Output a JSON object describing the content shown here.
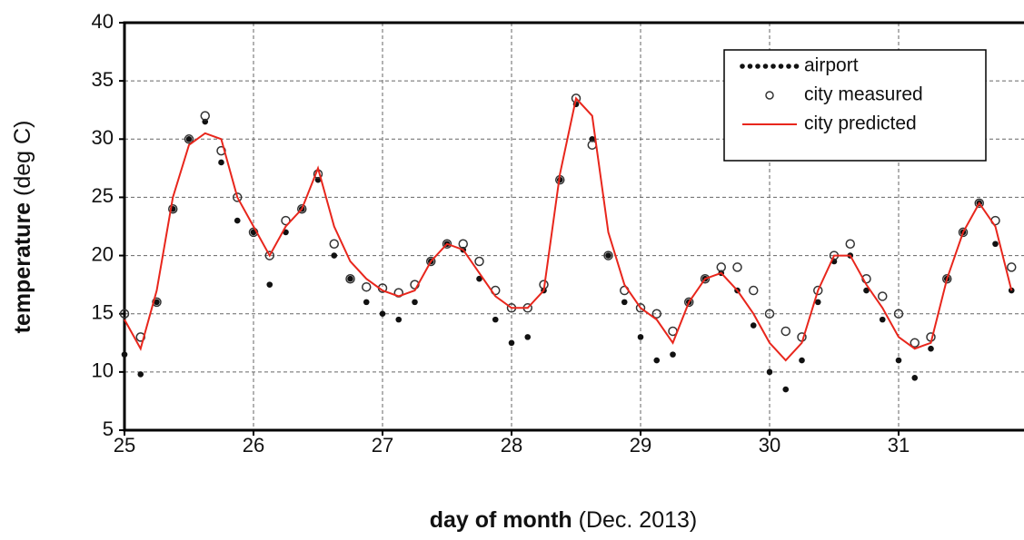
{
  "chart_data": {
    "type": "line",
    "x_label": "day of month",
    "x_label_note": "(Dec. 2013)",
    "y_label": "temperature",
    "y_label_note": "(deg C)",
    "xlim": [
      25,
      32
    ],
    "ylim": [
      5,
      40
    ],
    "xticks": [
      25,
      26,
      27,
      28,
      29,
      30,
      31
    ],
    "yticks": [
      5,
      10,
      15,
      20,
      25,
      30,
      35,
      40
    ],
    "grid": true,
    "legend": "upper right",
    "x": [
      25,
      25.125,
      25.25,
      25.375,
      25.5,
      25.625,
      25.75,
      25.875,
      26,
      26.125,
      26.25,
      26.375,
      26.5,
      26.625,
      26.75,
      26.875,
      27,
      27.125,
      27.25,
      27.375,
      27.5,
      27.625,
      27.75,
      27.875,
      28,
      28.125,
      28.25,
      28.375,
      28.5,
      28.625,
      28.75,
      28.875,
      29,
      29.125,
      29.25,
      29.375,
      29.5,
      29.625,
      29.75,
      29.875,
      30,
      30.125,
      30.25,
      30.375,
      30.5,
      30.625,
      30.75,
      30.875,
      31,
      31.125,
      31.25,
      31.375,
      31.5,
      31.625,
      31.75,
      31.875
    ],
    "series": [
      {
        "name": "airport",
        "color": "#111111",
        "style": "dots",
        "values": [
          11.5,
          9.8,
          16,
          24,
          30,
          31.5,
          28,
          23,
          22,
          17.5,
          22,
          24,
          26.5,
          20,
          18,
          16,
          15,
          14.5,
          16,
          19.5,
          21,
          20.5,
          18,
          14.5,
          12.5,
          13,
          17,
          26.5,
          33,
          30,
          20,
          16,
          13,
          11,
          11.5,
          16,
          18,
          18.5,
          17,
          14,
          10,
          8.5,
          11,
          16,
          19.5,
          20,
          17,
          14.5,
          11,
          9.5,
          12,
          18,
          22,
          24.5,
          21,
          17
        ]
      },
      {
        "name": "city measured",
        "color": "#333333",
        "style": "circles",
        "values": [
          15,
          13,
          16,
          24,
          30,
          32,
          29,
          25,
          22,
          20,
          23,
          24,
          27,
          21,
          18,
          17.3,
          17.2,
          16.8,
          17.5,
          19.5,
          21,
          21,
          19.5,
          17,
          15.5,
          15.5,
          17.5,
          26.5,
          33.5,
          29.5,
          20,
          17,
          15.5,
          15,
          13.5,
          16,
          18,
          19,
          19,
          17,
          15,
          13.5,
          13,
          17,
          20,
          21,
          18,
          16.5,
          15,
          12.5,
          13,
          18,
          22,
          24.5,
          23,
          19
        ]
      },
      {
        "name": "city predicted",
        "color": "#e8261c",
        "style": "line",
        "values": [
          14.5,
          12,
          17,
          25,
          29.5,
          30.5,
          30,
          25,
          22.5,
          20,
          22.5,
          24,
          27.5,
          22.5,
          19.5,
          18,
          17,
          16.5,
          17,
          19.5,
          21,
          20.5,
          18.5,
          16.5,
          15.5,
          15.5,
          17,
          27,
          33.5,
          32,
          22,
          17.5,
          15.5,
          14.5,
          12.5,
          16,
          18,
          18.5,
          17,
          15,
          12.5,
          11,
          12.5,
          17,
          20,
          20,
          17.5,
          15.5,
          13,
          12,
          12.5,
          18,
          22,
          24.5,
          22.5,
          17
        ]
      }
    ]
  }
}
